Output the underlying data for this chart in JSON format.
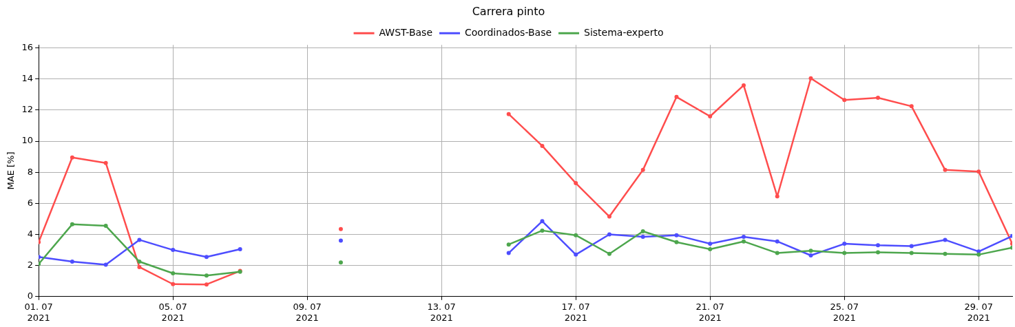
{
  "chart_data": {
    "type": "line",
    "title": "Carrera pinto",
    "ylabel": "MAE [%]",
    "x": [
      "2021-07-01",
      "2021-07-02",
      "2021-07-03",
      "2021-07-04",
      "2021-07-05",
      "2021-07-06",
      "2021-07-07",
      "2021-07-08",
      "2021-07-09",
      "2021-07-10",
      "2021-07-11",
      "2021-07-12",
      "2021-07-13",
      "2021-07-14",
      "2021-07-15",
      "2021-07-16",
      "2021-07-17",
      "2021-07-18",
      "2021-07-19",
      "2021-07-20",
      "2021-07-21",
      "2021-07-22",
      "2021-07-23",
      "2021-07-24",
      "2021-07-25",
      "2021-07-26",
      "2021-07-27",
      "2021-07-28",
      "2021-07-29",
      "2021-07-30"
    ],
    "series": [
      {
        "name": "AWST-Base",
        "color": "#ff4d4d",
        "values": [
          3.5,
          8.95,
          8.6,
          1.9,
          0.8,
          0.78,
          1.65,
          null,
          null,
          4.35,
          null,
          null,
          null,
          null,
          11.75,
          9.7,
          7.3,
          5.15,
          8.15,
          12.85,
          11.6,
          13.6,
          6.45,
          14.05,
          12.65,
          12.8,
          12.25,
          8.15,
          8.05,
          3.4
        ]
      },
      {
        "name": "Coordinados-Base",
        "color": "#4d4dff",
        "values": [
          2.55,
          2.25,
          2.05,
          3.65,
          3.0,
          2.55,
          3.05,
          null,
          null,
          3.6,
          null,
          null,
          null,
          null,
          2.8,
          4.85,
          2.7,
          4.0,
          3.85,
          3.95,
          3.4,
          3.85,
          3.55,
          2.65,
          3.4,
          3.3,
          3.25,
          3.65,
          2.9,
          3.9
        ]
      },
      {
        "name": "Sistema-experto",
        "color": "#4da64d",
        "values": [
          2.1,
          4.65,
          4.55,
          2.25,
          1.5,
          1.35,
          1.6,
          null,
          null,
          2.2,
          null,
          null,
          null,
          null,
          3.35,
          4.25,
          3.95,
          2.75,
          4.2,
          3.5,
          3.05,
          3.55,
          2.8,
          2.95,
          2.8,
          2.85,
          2.8,
          2.75,
          2.7,
          3.15
        ]
      }
    ],
    "xlim": [
      "2021-07-01",
      "2021-07-30"
    ],
    "xticks": [
      {
        "value": "2021-07-01",
        "label": "01. 07\n2021"
      },
      {
        "value": "2021-07-05",
        "label": "05. 07\n2021"
      },
      {
        "value": "2021-07-09",
        "label": "09. 07\n2021"
      },
      {
        "value": "2021-07-13",
        "label": "13. 07\n2021"
      },
      {
        "value": "2021-07-17",
        "label": "17. 07\n2021"
      },
      {
        "value": "2021-07-21",
        "label": "21. 07\n2021"
      },
      {
        "value": "2021-07-25",
        "label": "25. 07\n2021"
      },
      {
        "value": "2021-07-29",
        "label": "29. 07\n2021"
      }
    ],
    "ylim": [
      0,
      16.2
    ],
    "yticks": [
      0,
      2,
      4,
      6,
      8,
      10,
      12,
      14,
      16
    ],
    "grid": true,
    "legend": "top",
    "marker": "circle",
    "line_style": "solid"
  }
}
